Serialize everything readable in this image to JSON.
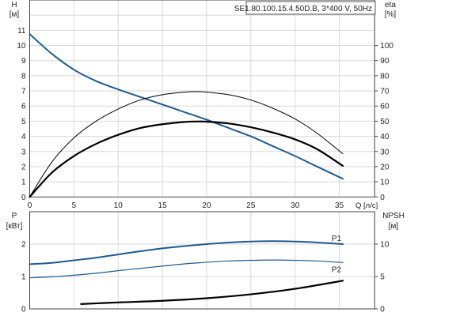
{
  "chart_data": [
    {
      "type": "line",
      "title": "SE1.80.100.15.4.50D.B, 3*400 V, 50Hz",
      "xlabel": "Q [л/с]",
      "ylabel": "H",
      "ylabel_unit": "[м]",
      "y2label": "eta",
      "y2label_unit": "[%]",
      "xlim": [
        0,
        39
      ],
      "ylim": [
        0,
        13
      ],
      "y2lim": [
        0,
        130
      ],
      "x_ticks": [
        "0",
        "5",
        "10",
        "15",
        "20",
        "25",
        "30",
        "35"
      ],
      "y_ticks": [
        "0",
        "1",
        "2",
        "3",
        "4",
        "5",
        "6",
        "7",
        "8",
        "9",
        "10",
        "11"
      ],
      "y2_ticks": [
        "0",
        "10",
        "20",
        "30",
        "40",
        "50",
        "60",
        "70",
        "80",
        "90",
        "100"
      ],
      "grid": true,
      "series": [
        {
          "axis": "left",
          "color": "#1f5a8e",
          "width": 2,
          "x": [
            0,
            2.5,
            5,
            7.5,
            10,
            12.5,
            15,
            17.5,
            20,
            22.5,
            25,
            27.5,
            30,
            32.5,
            35.4
          ],
          "y": [
            10.75,
            9.45,
            8.4,
            7.65,
            7.1,
            6.6,
            6.1,
            5.6,
            5.1,
            4.55,
            4.0,
            3.35,
            2.7,
            2.0,
            1.2
          ]
        },
        {
          "axis": "right",
          "color": "#000000",
          "width": 1,
          "x": [
            0,
            2.5,
            5,
            7.5,
            10,
            12.5,
            15,
            17.5,
            19,
            20,
            22.5,
            25,
            27.5,
            30,
            32.5,
            35.4
          ],
          "y": [
            0,
            23,
            39,
            50,
            58,
            64,
            67.5,
            69.2,
            69.5,
            69.2,
            67.5,
            64,
            58.5,
            51.5,
            42,
            28.5
          ]
        },
        {
          "axis": "right",
          "color": "#000000",
          "width": 2.2,
          "x": [
            0,
            2.5,
            5,
            7.5,
            10,
            12.5,
            15,
            17.5,
            19,
            20,
            22.5,
            25,
            27.5,
            30,
            32.5,
            35.4
          ],
          "y": [
            0,
            16,
            27,
            35,
            41,
            45.5,
            48,
            49.5,
            49.8,
            49.7,
            48.5,
            46,
            42.5,
            38,
            31.5,
            20.5
          ]
        }
      ]
    },
    {
      "type": "line",
      "ylabel": "P",
      "ylabel_unit": "[кВт]",
      "y2label": "NPSH",
      "y2label_unit": "[м]",
      "xlim": [
        0,
        39
      ],
      "ylim": [
        0,
        3
      ],
      "y2lim": [
        0,
        15
      ],
      "y_ticks": [
        "0",
        "1",
        "2"
      ],
      "y2_ticks": [
        "0",
        "5",
        "10"
      ],
      "grid": true,
      "series": [
        {
          "name": "P1",
          "axis": "left",
          "color": "#1f5a8e",
          "width": 2,
          "x": [
            0,
            2.5,
            5,
            7.5,
            10,
            12.5,
            15,
            17.5,
            20,
            22.5,
            25,
            27.5,
            30,
            32.5,
            35.4
          ],
          "y": [
            1.38,
            1.42,
            1.5,
            1.58,
            1.68,
            1.78,
            1.87,
            1.94,
            2.0,
            2.05,
            2.08,
            2.09,
            2.08,
            2.05,
            2.0
          ]
        },
        {
          "name": "P2",
          "axis": "left",
          "color": "#1f5a8e",
          "width": 1.2,
          "x": [
            0,
            2.5,
            5,
            7.5,
            10,
            12.5,
            15,
            17.5,
            20,
            22.5,
            25,
            27.5,
            30,
            32.5,
            35.4
          ],
          "y": [
            0.96,
            0.99,
            1.04,
            1.1,
            1.18,
            1.25,
            1.32,
            1.39,
            1.44,
            1.48,
            1.5,
            1.51,
            1.5,
            1.48,
            1.43
          ]
        },
        {
          "axis": "right",
          "color": "#000000",
          "width": 2.2,
          "x": [
            5.8,
            10,
            15,
            20,
            25,
            30,
            35.4
          ],
          "y": [
            0.75,
            1.0,
            1.25,
            1.65,
            2.25,
            3.1,
            4.35
          ]
        }
      ]
    }
  ]
}
